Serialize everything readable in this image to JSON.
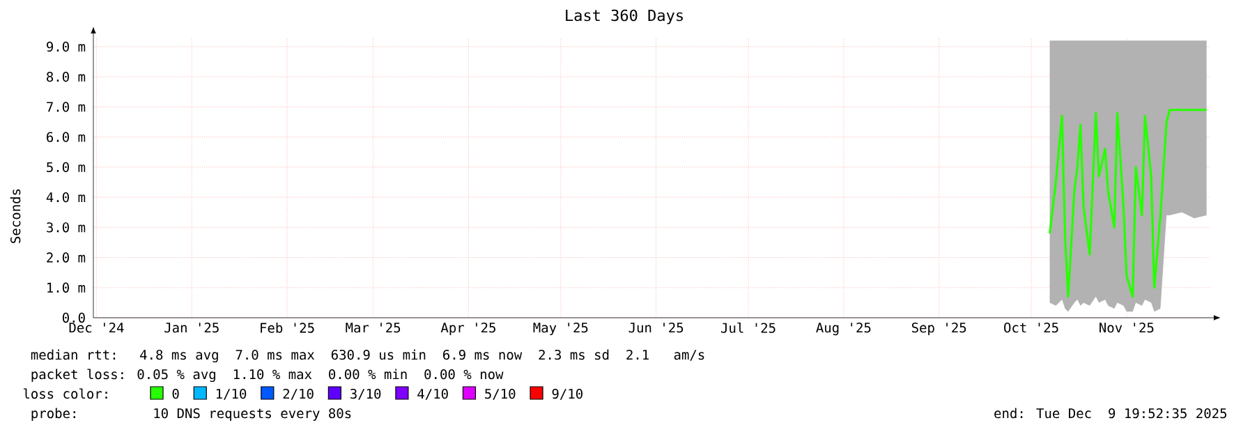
{
  "chart_data": {
    "type": "line",
    "title": "Last 360 Days",
    "ylabel": "Seconds",
    "xlim": [
      "2024-11-30",
      "2025-11-28"
    ],
    "xticks": [
      {
        "value": "2024-12-01",
        "label": "Dec '24"
      },
      {
        "value": "2025-01-01",
        "label": "Jan '25"
      },
      {
        "value": "2025-02-01",
        "label": "Feb '25"
      },
      {
        "value": "2025-03-01",
        "label": "Mar '25"
      },
      {
        "value": "2025-04-01",
        "label": "Apr '25"
      },
      {
        "value": "2025-05-01",
        "label": "May '25"
      },
      {
        "value": "2025-06-01",
        "label": "Jun '25"
      },
      {
        "value": "2025-07-01",
        "label": "Jul '25"
      },
      {
        "value": "2025-08-01",
        "label": "Aug '25"
      },
      {
        "value": "2025-09-01",
        "label": "Sep '25"
      },
      {
        "value": "2025-10-01",
        "label": "Oct '25"
      },
      {
        "value": "2025-11-01",
        "label": "Nov '25"
      }
    ],
    "ylim": [
      0,
      9.3
    ],
    "yticks": [
      {
        "value": 0,
        "label": "0.0"
      },
      {
        "value": 1,
        "label": "1.0 m"
      },
      {
        "value": 2,
        "label": "2.0 m"
      },
      {
        "value": 3,
        "label": "3.0 m"
      },
      {
        "value": 4,
        "label": "4.0 m"
      },
      {
        "value": 5,
        "label": "5.0 m"
      },
      {
        "value": 6,
        "label": "6.0 m"
      },
      {
        "value": 7,
        "label": "7.0 m"
      },
      {
        "value": 8,
        "label": "8.0 m"
      },
      {
        "value": 9,
        "label": "9.0 m"
      }
    ],
    "grid": true,
    "legend": "bottom",
    "legend_title": "loss color:",
    "marker": "none",
    "line_style": "solid",
    "series": [
      {
        "color": "#26ff00",
        "x": [
          "2025-10-07",
          "2025-10-09",
          "2025-10-11",
          "2025-10-12",
          "2025-10-13",
          "2025-10-15",
          "2025-10-16",
          "2025-10-17",
          "2025-10-18",
          "2025-10-20",
          "2025-10-22",
          "2025-10-23",
          "2025-10-25",
          "2025-10-26",
          "2025-10-28",
          "2025-10-29",
          "2025-10-31",
          "2025-11-01",
          "2025-11-03",
          "2025-11-04",
          "2025-11-06",
          "2025-11-07",
          "2025-11-09",
          "2025-11-10",
          "2025-11-12",
          "2025-11-14",
          "2025-11-15",
          "2025-11-19",
          "2025-11-23",
          "2025-11-27"
        ],
        "values": [
          2.8,
          4.5,
          6.7,
          2.7,
          0.7,
          4.2,
          5.0,
          6.4,
          3.7,
          2.1,
          6.8,
          4.7,
          5.6,
          4.2,
          3.0,
          6.8,
          3.7,
          1.4,
          0.7,
          5.0,
          3.4,
          6.7,
          4.7,
          1.0,
          3.4,
          6.5,
          6.9,
          6.9,
          6.9,
          6.9
        ],
        "lower": [
          0.5,
          0.4,
          0.6,
          0.3,
          0.2,
          0.5,
          0.6,
          0.4,
          0.5,
          0.4,
          0.7,
          0.5,
          0.6,
          0.4,
          0.3,
          0.5,
          0.4,
          0.2,
          0.2,
          0.5,
          0.4,
          0.6,
          0.5,
          0.2,
          0.3,
          3.4,
          3.4,
          3.5,
          3.3,
          3.4
        ],
        "upper": [
          9.2,
          9.2,
          9.2,
          9.2,
          9.2,
          9.2,
          9.2,
          9.2,
          9.2,
          9.2,
          9.2,
          9.2,
          9.2,
          9.2,
          9.2,
          9.2,
          9.2,
          9.2,
          9.2,
          9.2,
          9.2,
          9.2,
          9.2,
          9.2,
          9.2,
          9.2,
          9.2,
          9.2,
          9.2,
          9.2
        ]
      },
      {
        "name": "0",
        "color": "#26ff00"
      },
      {
        "name": "1/10",
        "color": "#00b8ff"
      },
      {
        "name": "2/10",
        "color": "#0059ff"
      },
      {
        "name": "3/10",
        "color": "#5e00ff"
      },
      {
        "name": "4/10",
        "color": "#7e00ff"
      },
      {
        "name": "5/10",
        "color": "#dd00ff"
      },
      {
        "name": "9/10",
        "color": "#ff0000"
      }
    ],
    "annotations": [
      "median rtt:  4.8 ms avg  7.0 ms max  630.9 us min  6.9 ms now  2.3 ms sd  2.1   am/s",
      "packet loss: 0.05 % avg  1.10 % max  0.00 % min  0.00 % now",
      "probe:       10 DNS requests every 80s",
      "end: Tue Dec  9 19:52:35 2025"
    ]
  }
}
